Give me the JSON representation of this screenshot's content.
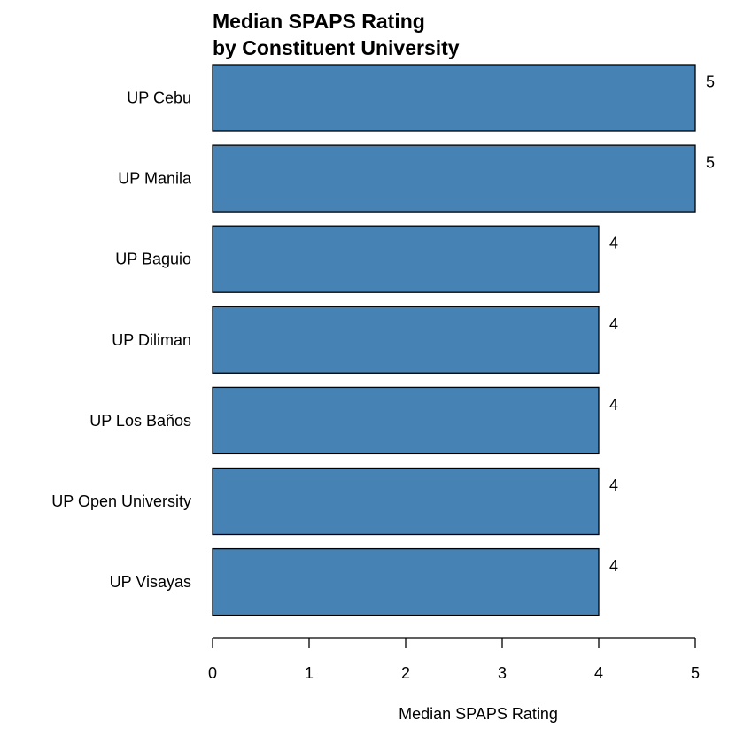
{
  "chart_data": {
    "type": "bar",
    "orientation": "horizontal",
    "title": [
      "Median SPAPS Rating",
      "by Constituent University"
    ],
    "categories": [
      "UP Cebu",
      "UP Manila",
      "UP Baguio",
      "UP Diliman",
      "UP Los Baños",
      "UP Open University",
      "UP Visayas"
    ],
    "values": [
      5,
      5,
      4,
      4,
      4,
      4,
      4
    ],
    "data_labels": [
      "5",
      "5",
      "4",
      "4",
      "4",
      "4",
      "4"
    ],
    "xlabel": "Median SPAPS Rating",
    "ylabel": "",
    "xlim": [
      0,
      5
    ],
    "xticks": [
      0,
      1,
      2,
      3,
      4,
      5
    ],
    "xtick_labels": [
      "0",
      "1",
      "2",
      "3",
      "4",
      "5"
    ],
    "grid": false,
    "legend": "none",
    "colors": {
      "bar_fill": "#4682b4",
      "bar_stroke": "#000000",
      "text": "#000000",
      "background": "#ffffff"
    }
  }
}
